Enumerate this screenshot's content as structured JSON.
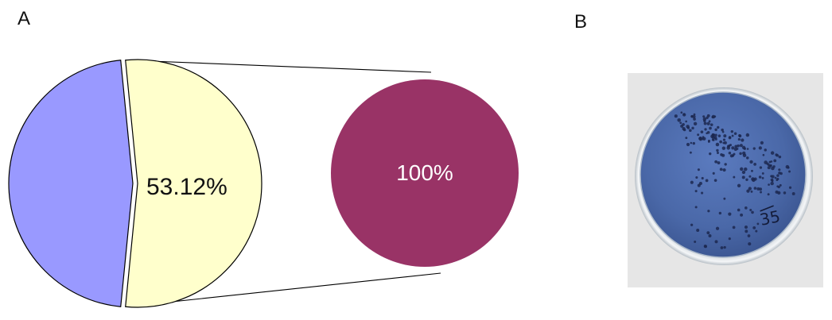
{
  "panels": {
    "a_label": "A",
    "b_label": "B"
  },
  "chart_data": [
    {
      "type": "pie",
      "labels": [
        "",
        ""
      ],
      "values": [
        46.88,
        53.12
      ],
      "slice_labels": [
        "",
        "53.12%"
      ],
      "colors": [
        "#9999ff",
        "#ffffcc"
      ]
    },
    {
      "type": "pie",
      "labels": [
        ""
      ],
      "values": [
        100
      ],
      "slice_labels": [
        "100%"
      ],
      "colors": [
        "#993366"
      ]
    }
  ],
  "photo": {
    "plate_handwriting": "35"
  },
  "colors": {
    "outline": "#000000",
    "connector": "#000000",
    "plate_medium": "#4f6eb0",
    "photo_background": "#e9e9e9"
  }
}
